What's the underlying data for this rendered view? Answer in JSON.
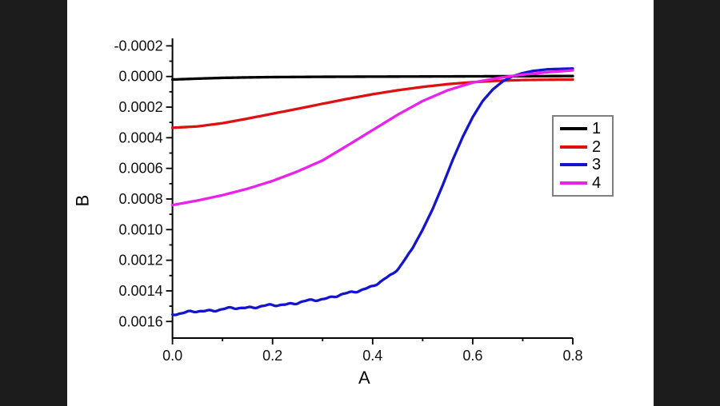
{
  "chart_data": {
    "type": "line",
    "title": "",
    "xlabel": "A",
    "ylabel": "B",
    "xlim": [
      0.0,
      0.8
    ],
    "ylim": [
      0.0017,
      -0.00025
    ],
    "y_axis_inverted": true,
    "grid": false,
    "x_ticks": [
      0.0,
      0.2,
      0.4,
      0.6,
      0.8
    ],
    "x_tick_labels": [
      "0.0",
      "0.2",
      "0.4",
      "0.6",
      "0.8"
    ],
    "y_ticks": [
      -0.0002,
      0.0,
      0.0002,
      0.0004,
      0.0006,
      0.0008,
      0.001,
      0.0012,
      0.0014,
      0.0016
    ],
    "y_tick_labels": [
      "-0.0002",
      "0.0000",
      "0.0002",
      "0.0004",
      "0.0006",
      "0.0008",
      "0.0010",
      "0.0012",
      "0.0014",
      "0.0016"
    ],
    "legend_position": "right-center",
    "series": [
      {
        "name": "1",
        "color": "#000000",
        "noisy": false,
        "x": [
          0,
          0.05,
          0.1,
          0.15,
          0.2,
          0.3,
          0.4,
          0.5,
          0.6,
          0.7,
          0.8
        ],
        "y": [
          2e-05,
          1.4e-05,
          9e-06,
          6e-06,
          4e-06,
          2e-06,
          1e-06,
          0.0,
          -1e-06,
          -2e-06,
          -3e-06
        ]
      },
      {
        "name": "2",
        "color": "#dd1111",
        "noisy": false,
        "x": [
          0,
          0.05,
          0.1,
          0.15,
          0.2,
          0.25,
          0.3,
          0.35,
          0.4,
          0.45,
          0.5,
          0.55,
          0.6,
          0.65,
          0.7,
          0.75,
          0.8
        ],
        "y": [
          0.000335,
          0.000326,
          0.000305,
          0.000275,
          0.000243,
          0.000211,
          0.000178,
          0.000146,
          0.000116,
          9e-05,
          6.8e-05,
          5e-05,
          3.7e-05,
          2.8e-05,
          2.3e-05,
          2.1e-05,
          2e-05
        ]
      },
      {
        "name": "3",
        "color": "#1414d0",
        "noisy": true,
        "x": [
          0,
          0.05,
          0.1,
          0.15,
          0.2,
          0.25,
          0.3,
          0.35,
          0.4,
          0.42,
          0.44,
          0.46,
          0.48,
          0.5,
          0.52,
          0.54,
          0.56,
          0.58,
          0.6,
          0.62,
          0.64,
          0.66,
          0.68,
          0.7,
          0.72,
          0.75,
          0.8
        ],
        "y": [
          0.00155,
          0.001535,
          0.00152,
          0.001508,
          0.001496,
          0.001478,
          0.001452,
          0.001418,
          0.00137,
          0.001335,
          0.00129,
          0.001215,
          0.00112,
          0.001,
          0.000865,
          0.00071,
          0.000545,
          0.000395,
          0.000265,
          0.00016,
          8.5e-05,
          3.2e-05,
          -2e-06,
          -2.2e-05,
          -3.6e-05,
          -4.7e-05,
          -5.2e-05
        ]
      },
      {
        "name": "4",
        "color": "#ea21ea",
        "noisy": false,
        "x": [
          0,
          0.05,
          0.1,
          0.15,
          0.2,
          0.25,
          0.3,
          0.35,
          0.4,
          0.45,
          0.5,
          0.55,
          0.6,
          0.65,
          0.7,
          0.75,
          0.8
        ],
        "y": [
          0.00084,
          0.00081,
          0.000775,
          0.000733,
          0.000682,
          0.00062,
          0.000548,
          0.00045,
          0.00035,
          0.00025,
          0.00016,
          9e-05,
          4e-05,
          1e-05,
          -1.2e-05,
          -2.8e-05,
          -4e-05
        ]
      }
    ]
  },
  "decoration": {
    "letterbox_color": "#1c1c1c",
    "background_color": "#ffffff",
    "legend_border_color": "#7f7f7f"
  }
}
